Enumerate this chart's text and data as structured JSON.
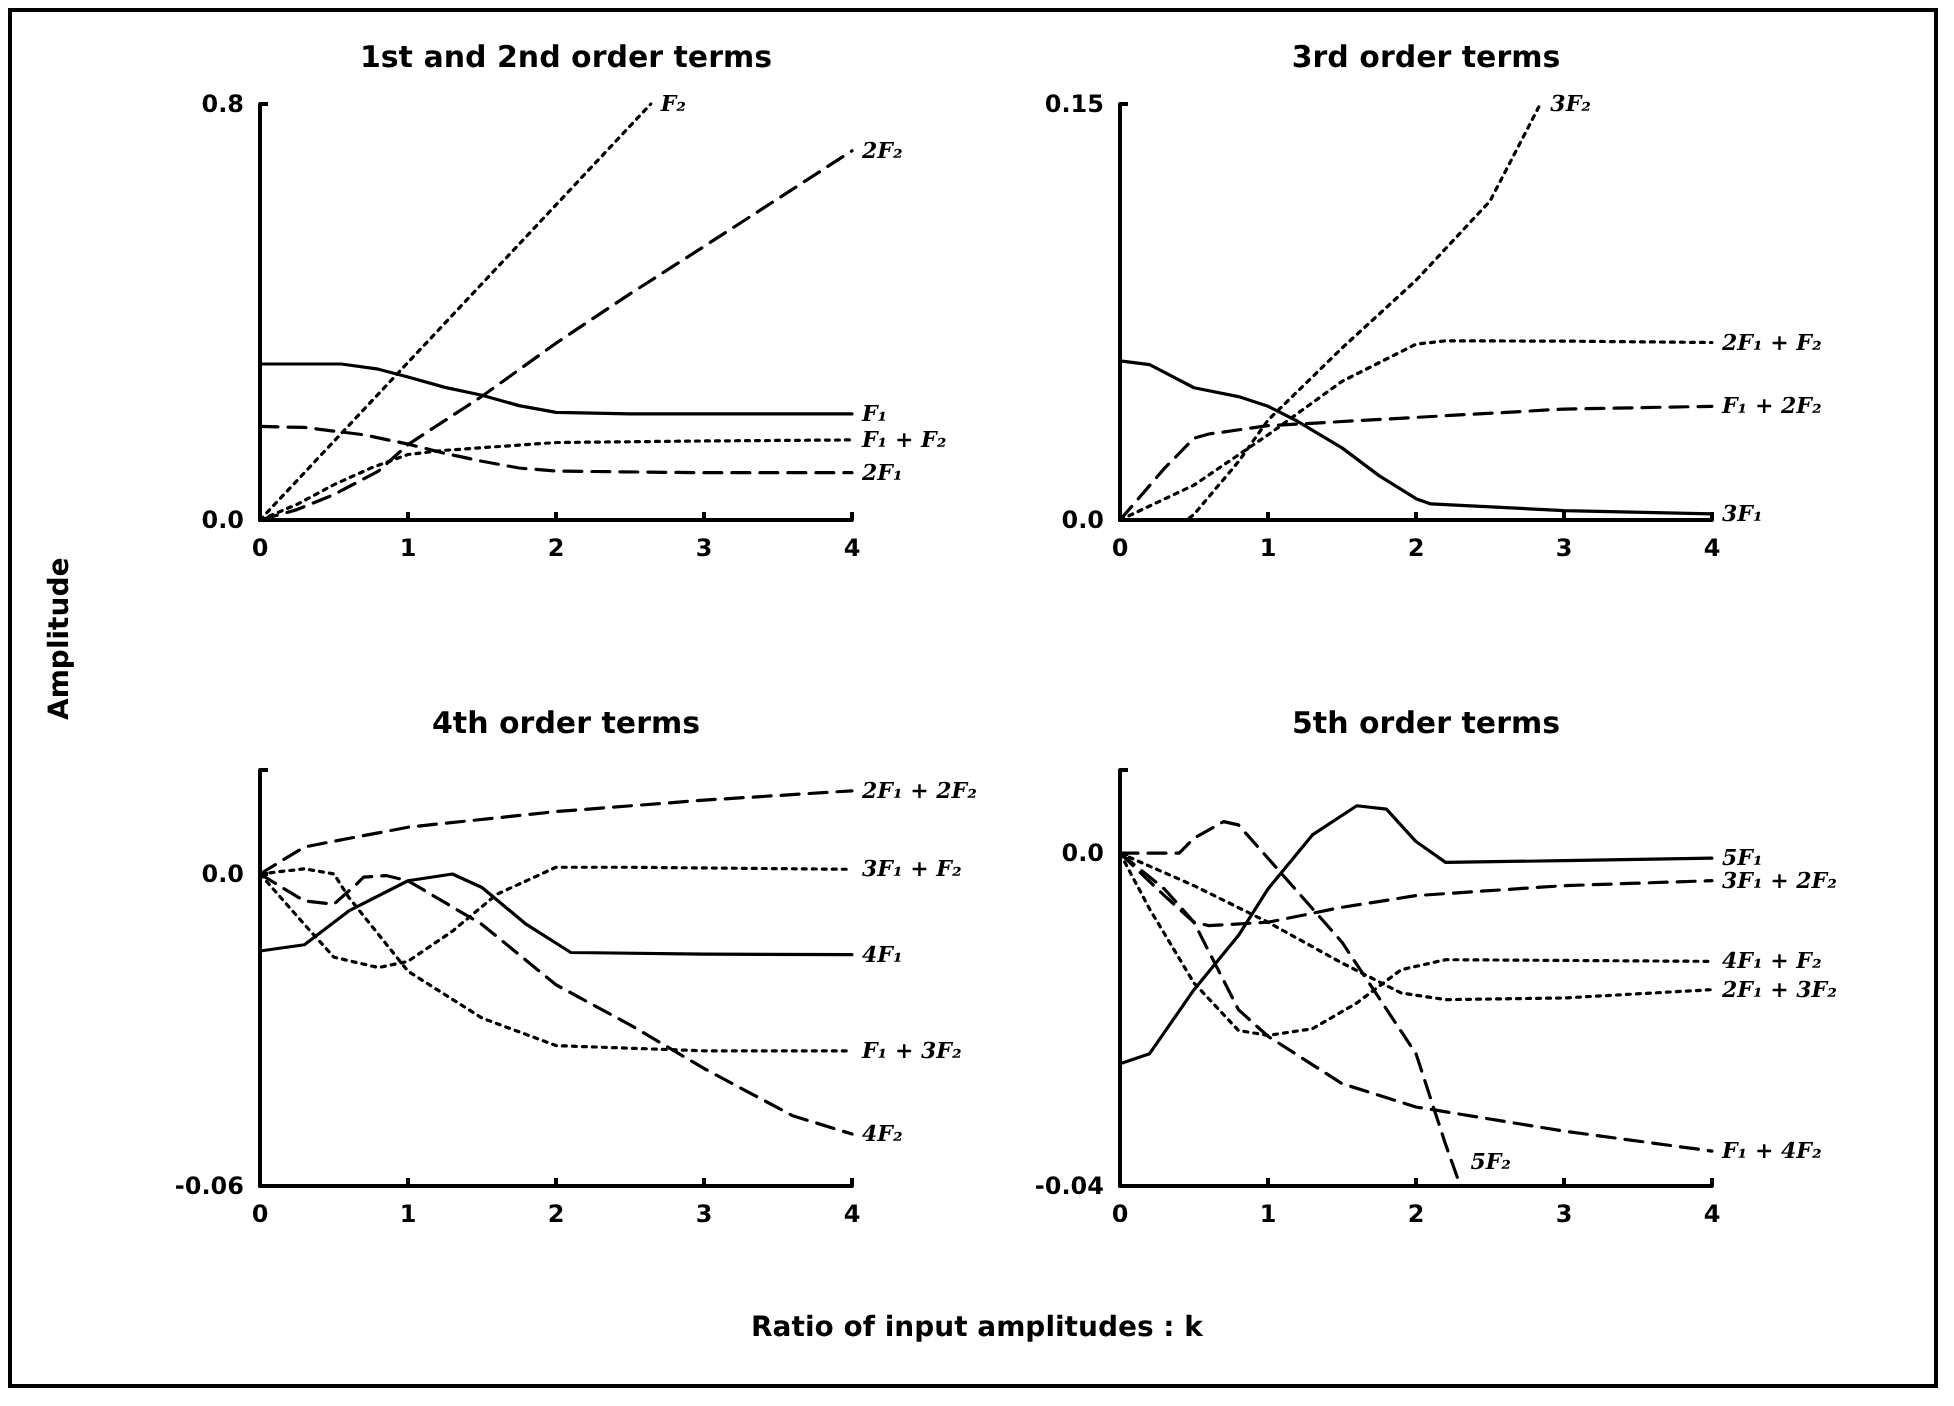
{
  "chart_data": [
    {
      "type": "line",
      "title": "1st and 2nd order terms",
      "ylabel": "Amplitude",
      "xlim": [
        0,
        4
      ],
      "xticks": [
        0,
        1,
        2,
        3,
        4
      ],
      "ylim": [
        0,
        0.8
      ],
      "yticks": [
        {
          "value": 0,
          "label": "0.0"
        },
        0.8
      ],
      "grid": false,
      "legend": false,
      "marker": "none",
      "series": [
        {
          "name": "F₁",
          "color": "#000000",
          "line_style": "solid",
          "x": [
            0,
            0.3,
            0.55,
            0.8,
            1,
            1.25,
            1.5,
            1.75,
            2,
            2.5,
            3,
            4
          ],
          "values": [
            0.3,
            0.3,
            0.3,
            0.29,
            0.275,
            0.255,
            0.24,
            0.22,
            0.207,
            0.204,
            0.204,
            0.204
          ]
        },
        {
          "name": "2F₁",
          "color": "#000000",
          "line_style": "dashed",
          "x": [
            0,
            0.3,
            0.7,
            1,
            1.25,
            1.5,
            1.75,
            2,
            3,
            4
          ],
          "values": [
            0.18,
            0.178,
            0.164,
            0.146,
            0.128,
            0.113,
            0.1,
            0.094,
            0.091,
            0.091
          ]
        },
        {
          "name": "F₂",
          "color": "#000000",
          "line_style": "dotted",
          "x": [
            0,
            1,
            2,
            2.64
          ],
          "values": [
            0,
            0.303,
            0.606,
            0.8
          ]
        },
        {
          "name": "2F₂",
          "color": "#000000",
          "line_style": "dashed",
          "x": [
            0,
            0.25,
            0.5,
            0.8,
            1,
            1.5,
            2,
            2.5,
            3,
            3.5,
            4
          ],
          "values": [
            0,
            0.02,
            0.049,
            0.094,
            0.145,
            0.238,
            0.34,
            0.435,
            0.526,
            0.618,
            0.71
          ]
        },
        {
          "name": "F₁ + F₂",
          "color": "#000000",
          "line_style": "dotted",
          "x": [
            0,
            0.25,
            0.5,
            0.75,
            1,
            1.25,
            1.5,
            2,
            3,
            4
          ],
          "values": [
            0,
            0.03,
            0.068,
            0.1,
            0.126,
            0.134,
            0.139,
            0.149,
            0.152,
            0.154
          ]
        }
      ]
    },
    {
      "type": "line",
      "title": "3rd order terms",
      "xlim": [
        0,
        4
      ],
      "xticks": [
        0,
        1,
        2,
        3,
        4
      ],
      "ylim": [
        0,
        0.15
      ],
      "yticks": [
        {
          "value": 0,
          "label": "0.0"
        },
        0.15
      ],
      "grid": false,
      "legend": false,
      "marker": "none",
      "series": [
        {
          "name": "3F₁",
          "color": "#000000",
          "line_style": "solid",
          "x": [
            0,
            0.2,
            0.5,
            0.8,
            1,
            1.2,
            1.5,
            1.75,
            2,
            2.1,
            3,
            4
          ],
          "values": [
            0.0574,
            0.056,
            0.0477,
            0.0445,
            0.041,
            0.0356,
            0.026,
            0.016,
            0.0077,
            0.0058,
            0.0034,
            0.0022
          ]
        },
        {
          "name": "3F₂",
          "color": "#000000",
          "line_style": "dotted",
          "x": [
            0,
            0.45,
            0.5,
            0.8,
            1,
            1.5,
            2,
            2.5,
            2.84
          ],
          "values": [
            0,
            0,
            0.002,
            0.021,
            0.036,
            0.062,
            0.0864,
            0.115,
            0.15
          ]
        },
        {
          "name": "2F₁ + F₂",
          "color": "#000000",
          "line_style": "dotted",
          "x": [
            0,
            0.5,
            1,
            1.5,
            2,
            2.2,
            3,
            4
          ],
          "values": [
            0,
            0.0126,
            0.0307,
            0.05,
            0.0634,
            0.0646,
            0.0645,
            0.064
          ]
        },
        {
          "name": "F₁ + 2F₂",
          "color": "#000000",
          "line_style": "dashed",
          "x": [
            0,
            0.3,
            0.5,
            0.6,
            1,
            2,
            3,
            4
          ],
          "values": [
            0,
            0.0186,
            0.0295,
            0.031,
            0.034,
            0.037,
            0.04,
            0.041
          ]
        }
      ]
    },
    {
      "type": "line",
      "title": "4th order terms",
      "xlabel": "Ratio of input amplitudes : k",
      "xlim": [
        0,
        4
      ],
      "xticks": [
        0,
        1,
        2,
        3,
        4
      ],
      "ylim": [
        -0.06,
        0.02
      ],
      "yticks": [
        -0.06,
        {
          "value": 0,
          "label": "0.0"
        },
        {
          "value": 0.02,
          "label": null
        }
      ],
      "grid": false,
      "legend": false,
      "marker": "none",
      "series": [
        {
          "name": "4F₁",
          "color": "#000000",
          "line_style": "solid",
          "x": [
            0,
            0.3,
            0.6,
            1,
            1.3,
            1.5,
            1.8,
            2.1,
            3,
            4
          ],
          "values": [
            -0.0148,
            -0.0136,
            -0.0071,
            -0.0013,
            0,
            -0.0026,
            -0.0097,
            -0.0151,
            -0.0154,
            -0.0155
          ]
        },
        {
          "name": "4F₂",
          "color": "#000000",
          "line_style": "dashed",
          "x": [
            0,
            0.3,
            0.5,
            0.65,
            0.7,
            0.85,
            1,
            1.5,
            2,
            2.5,
            3,
            3.6,
            4
          ],
          "values": [
            0,
            -0.0052,
            -0.0058,
            -0.002,
            -0.0006,
            -0.0003,
            -0.0013,
            -0.0097,
            -0.0213,
            -0.029,
            -0.0374,
            -0.0465,
            -0.05
          ]
        },
        {
          "name": "3F₁ + F₂",
          "color": "#000000",
          "line_style": "dotted",
          "x": [
            0,
            0.3,
            0.5,
            0.8,
            1,
            1.3,
            1.6,
            2,
            2.5,
            4
          ],
          "values": [
            0,
            -0.0097,
            -0.016,
            -0.018,
            -0.0168,
            -0.011,
            -0.0039,
            0.0013,
            0.0013,
            0.0009
          ]
        },
        {
          "name": "F₁ + 3F₂",
          "color": "#000000",
          "line_style": "dotted",
          "x": [
            0,
            0.3,
            0.5,
            0.6,
            1,
            1.5,
            2,
            3,
            4
          ],
          "values": [
            0,
            0.001,
            0,
            -0.0045,
            -0.0187,
            -0.0277,
            -0.033,
            -0.034,
            -0.034
          ]
        },
        {
          "name": "2F₁ + 2F₂",
          "color": "#000000",
          "line_style": "dashed",
          "x": [
            0,
            0.3,
            0.5,
            1,
            2,
            3,
            4
          ],
          "values": [
            0,
            0.0052,
            0.0063,
            0.009,
            0.012,
            0.0142,
            0.016
          ]
        }
      ]
    },
    {
      "type": "line",
      "title": "5th order terms",
      "xlim": [
        0,
        4
      ],
      "xticks": [
        0,
        1,
        2,
        3,
        4
      ],
      "ylim": [
        -0.04,
        0.01
      ],
      "yticks": [
        -0.04,
        {
          "value": 0,
          "label": "0.0"
        },
        {
          "value": 0.01,
          "label": null
        }
      ],
      "grid": false,
      "legend": false,
      "marker": "none",
      "series": [
        {
          "name": "5F₁",
          "color": "#000000",
          "line_style": "solid",
          "x": [
            0,
            0.2,
            0.5,
            0.8,
            1,
            1.3,
            1.6,
            1.8,
            2,
            2.2,
            3,
            4
          ],
          "values": [
            -0.0253,
            -0.0241,
            -0.0164,
            -0.0099,
            -0.0043,
            0.0022,
            0.0057,
            0.0053,
            0.0014,
            -0.0011,
            -0.0009,
            -0.0006
          ]
        },
        {
          "name": "5F₂",
          "color": "#000000",
          "line_style": "dashed",
          "x": [
            0,
            0.4,
            0.5,
            0.7,
            0.8,
            1,
            1.5,
            2,
            2.2,
            2.3
          ],
          "values": [
            0,
            0,
            0.0018,
            0.0038,
            0.0034,
            -0.0006,
            -0.0107,
            -0.0241,
            -0.035,
            -0.04
          ]
        },
        {
          "name": "3F₁ + 2F₂",
          "color": "#000000",
          "line_style": "dashed",
          "x": [
            0,
            0.3,
            0.5,
            0.6,
            1,
            1.5,
            2,
            3,
            4
          ],
          "values": [
            0,
            -0.0043,
            -0.0083,
            -0.0087,
            -0.0083,
            -0.0065,
            -0.0051,
            -0.0039,
            -0.0033
          ]
        },
        {
          "name": "4F₁ + F₂",
          "color": "#000000",
          "line_style": "dotted",
          "x": [
            0,
            0.2,
            0.5,
            0.8,
            1,
            1.3,
            1.6,
            1.9,
            2.2,
            4
          ],
          "values": [
            0,
            -0.0067,
            -0.0156,
            -0.0213,
            -0.0219,
            -0.0211,
            -0.018,
            -0.014,
            -0.0128,
            -0.013
          ]
        },
        {
          "name": "2F₁ + 3F₂",
          "color": "#000000",
          "line_style": "dotted",
          "x": [
            0,
            0.5,
            1,
            1.5,
            1.9,
            2.2,
            3,
            4
          ],
          "values": [
            0,
            -0.0039,
            -0.0083,
            -0.0132,
            -0.0168,
            -0.0176,
            -0.0174,
            -0.0164
          ]
        },
        {
          "name": "F₁ + 4F₂",
          "color": "#000000",
          "line_style": "dashed",
          "x": [
            0,
            0.3,
            0.5,
            0.8,
            1,
            1.5,
            2,
            3,
            4
          ],
          "values": [
            0,
            -0.0051,
            -0.0083,
            -0.0188,
            -0.022,
            -0.0277,
            -0.0305,
            -0.0334,
            -0.0358
          ]
        }
      ]
    }
  ]
}
